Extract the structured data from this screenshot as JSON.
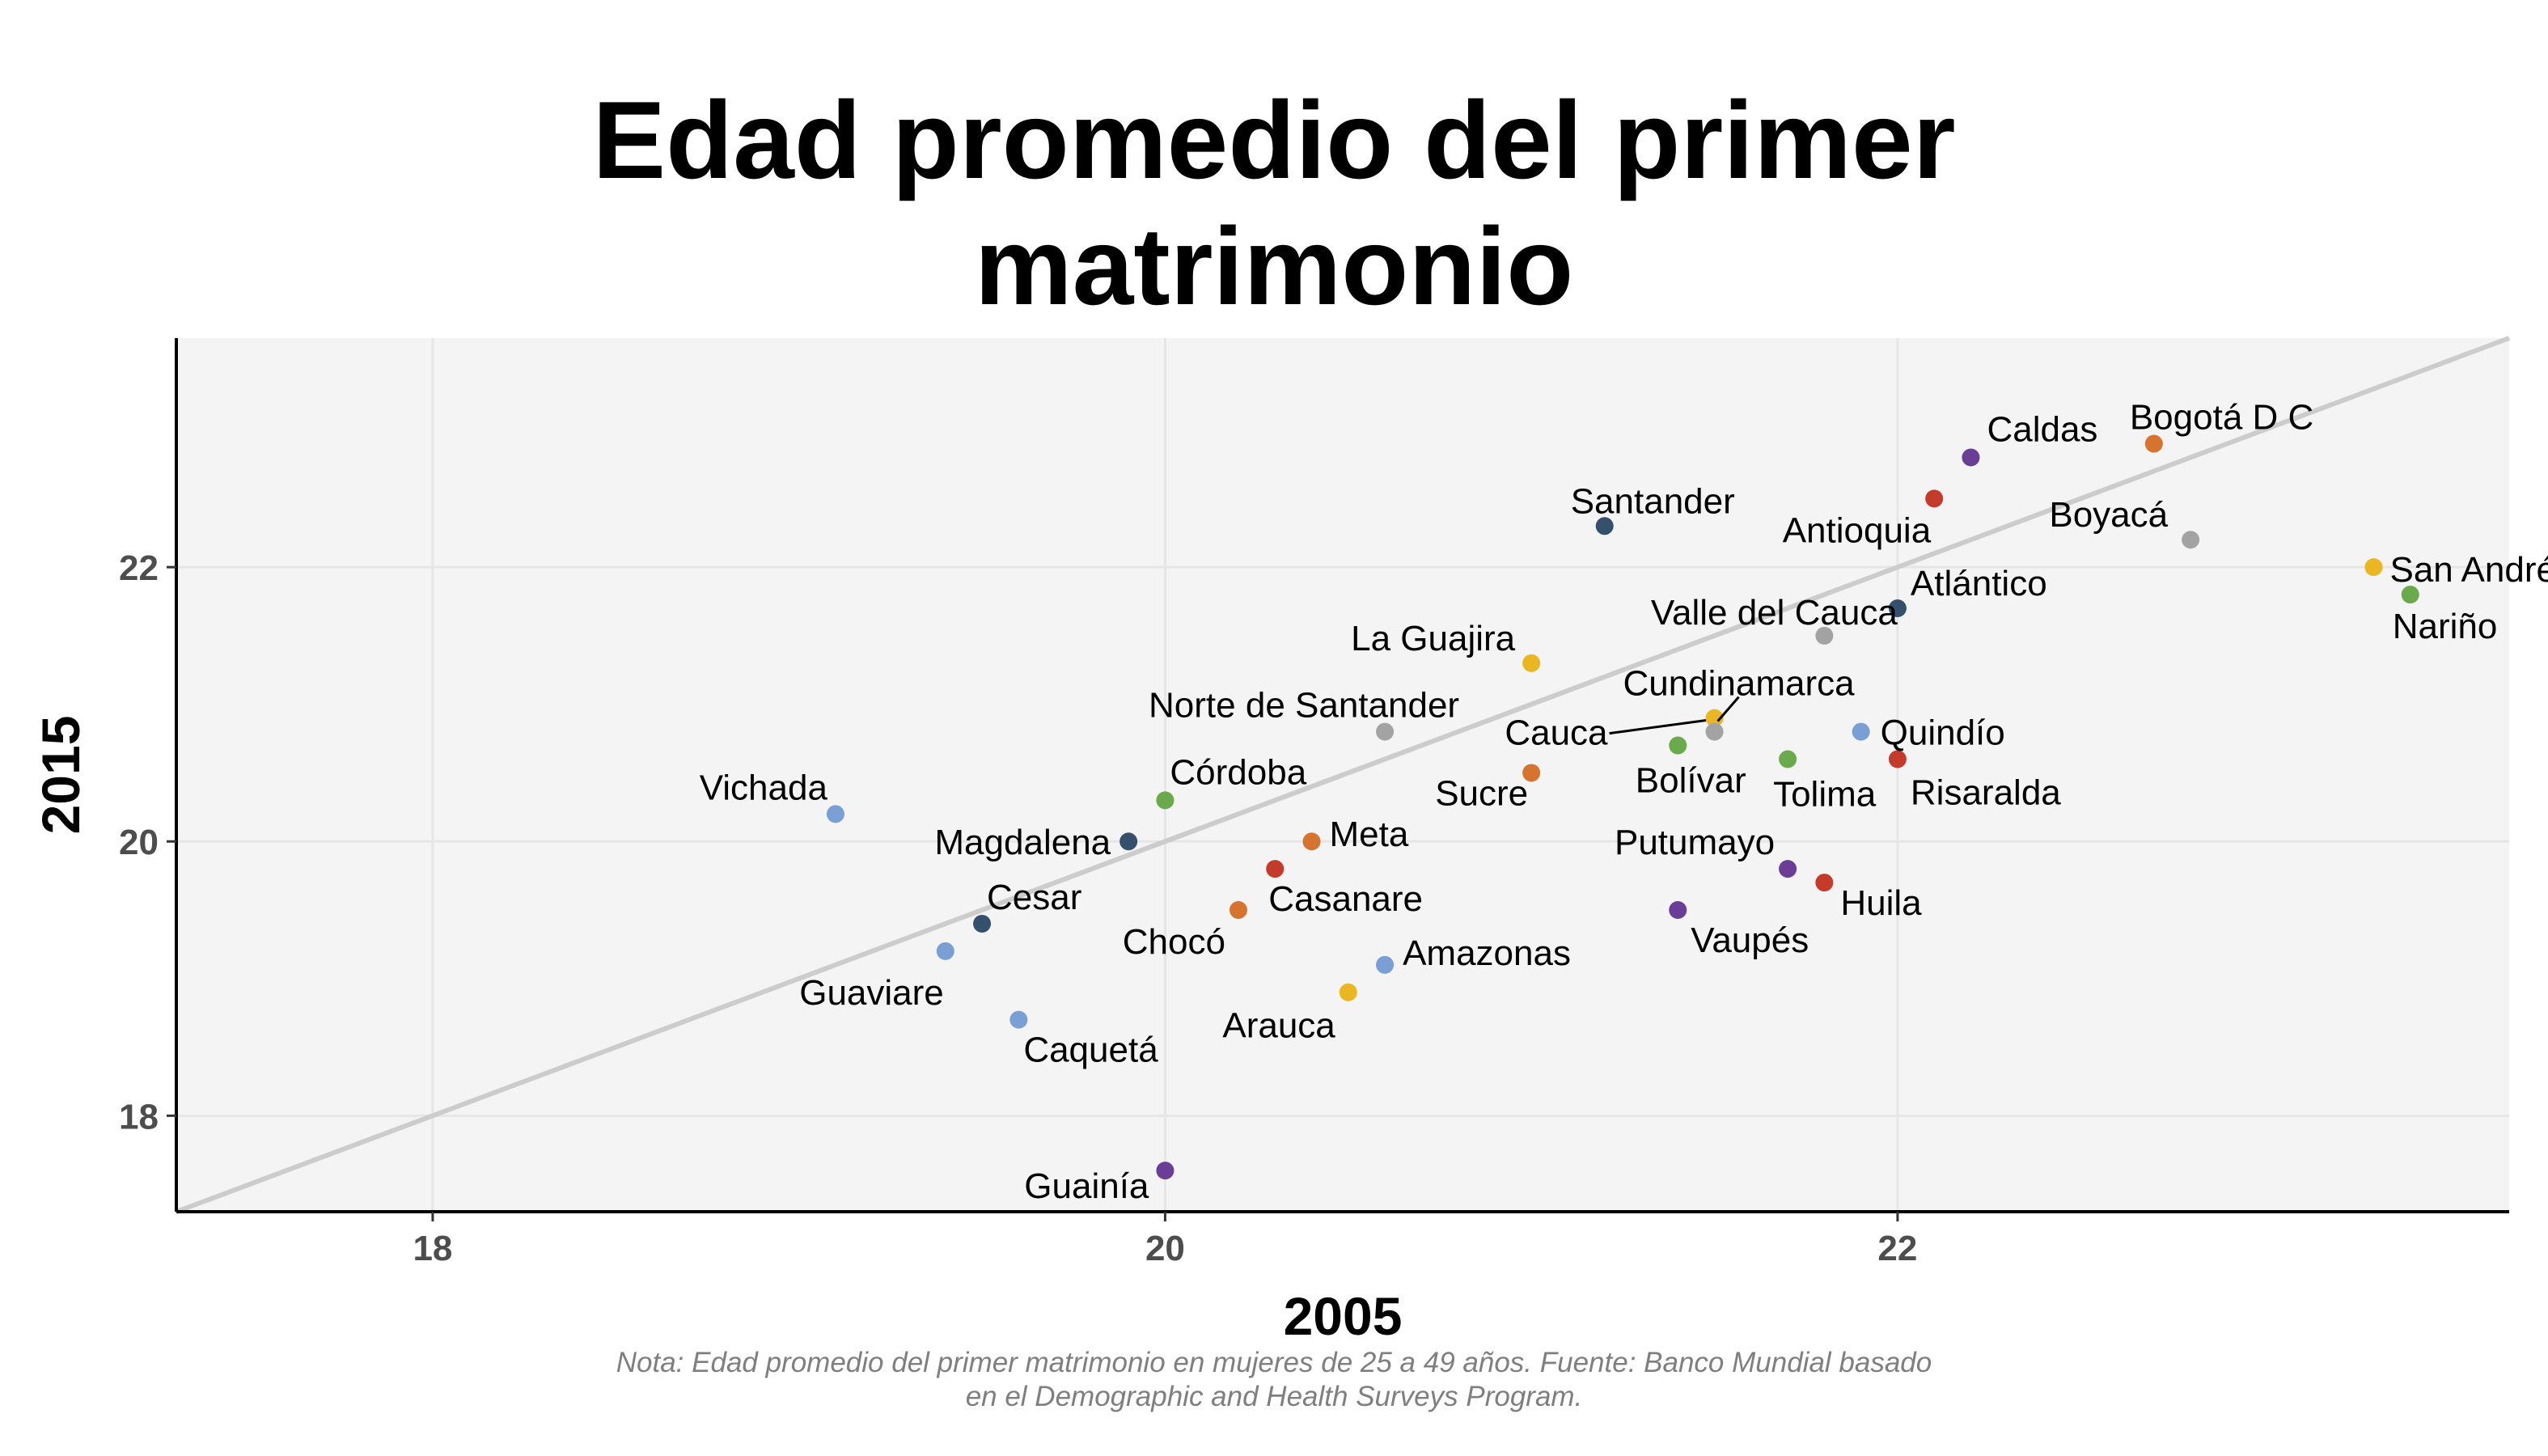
{
  "colors": {
    "panel": "#f4f4f4",
    "grid": "#e6e6e6",
    "reference_line": "#cccccc",
    "axis": "#000000",
    "dark_blue": "#34506d",
    "light_blue": "#7a9fd4",
    "green": "#6aaa4c",
    "orange": "#d5732f",
    "red": "#c43b2b",
    "purple": "#6a3e97",
    "yellow": "#eab722",
    "gray": "#a3a3a3"
  },
  "chart_data": {
    "type": "scatter",
    "title": "Edad promedio del primer\nmatrimonio",
    "xlabel": "2005",
    "ylabel": "2015",
    "xlim": [
      17.3,
      23.67
    ],
    "ylim": [
      17.3,
      23.67
    ],
    "xticks": [
      18,
      20,
      22
    ],
    "yticks": [
      18,
      20,
      22
    ],
    "grid": true,
    "reference_line": "y = x",
    "legend": "none",
    "points": [
      {
        "label": "Caldas",
        "x": 22.2,
        "y": 22.8,
        "color": "purple"
      },
      {
        "label": "Bogotá D C",
        "x": 22.7,
        "y": 22.9,
        "color": "orange"
      },
      {
        "label": "Antioquia",
        "x": 22.1,
        "y": 22.5,
        "color": "red"
      },
      {
        "label": "Santander",
        "x": 21.2,
        "y": 22.3,
        "color": "dark_blue"
      },
      {
        "label": "Boyacá",
        "x": 22.8,
        "y": 22.2,
        "color": "gray"
      },
      {
        "label": "San Andrés",
        "x": 23.3,
        "y": 22.0,
        "color": "yellow"
      },
      {
        "label": "Nariño",
        "x": 23.4,
        "y": 21.8,
        "color": "green"
      },
      {
        "label": "Atlántico",
        "x": 22.0,
        "y": 21.7,
        "color": "dark_blue"
      },
      {
        "label": "Valle del Cauca",
        "x": 21.8,
        "y": 21.5,
        "color": "gray"
      },
      {
        "label": "La Guajira",
        "x": 21.0,
        "y": 21.3,
        "color": "yellow"
      },
      {
        "label": "Cundinamarca",
        "x": 21.5,
        "y": 20.9,
        "color": "yellow"
      },
      {
        "label": "Cauca",
        "x": 21.5,
        "y": 20.8,
        "color": "gray"
      },
      {
        "label": "Norte de Santander",
        "x": 20.6,
        "y": 20.8,
        "color": "gray"
      },
      {
        "label": "Quindío",
        "x": 21.9,
        "y": 20.8,
        "color": "light_blue"
      },
      {
        "label": "Bolívar",
        "x": 21.4,
        "y": 20.7,
        "color": "green"
      },
      {
        "label": "Tolima",
        "x": 21.7,
        "y": 20.6,
        "color": "green"
      },
      {
        "label": "Risaralda",
        "x": 22.0,
        "y": 20.6,
        "color": "red"
      },
      {
        "label": "Sucre",
        "x": 21.0,
        "y": 20.5,
        "color": "orange"
      },
      {
        "label": "Córdoba",
        "x": 20.0,
        "y": 20.3,
        "color": "green"
      },
      {
        "label": "Vichada",
        "x": 19.1,
        "y": 20.2,
        "color": "light_blue"
      },
      {
        "label": "Magdalena",
        "x": 19.9,
        "y": 20.0,
        "color": "dark_blue"
      },
      {
        "label": "Meta",
        "x": 20.4,
        "y": 20.0,
        "color": "orange"
      },
      {
        "label": "Putumayo",
        "x": 21.7,
        "y": 19.8,
        "color": "purple"
      },
      {
        "label": "Casanare",
        "x": 20.3,
        "y": 19.8,
        "color": "red"
      },
      {
        "label": "Huila",
        "x": 21.8,
        "y": 19.7,
        "color": "red"
      },
      {
        "label": "Chocó",
        "x": 20.2,
        "y": 19.5,
        "color": "orange"
      },
      {
        "label": "Vaupés",
        "x": 21.4,
        "y": 19.5,
        "color": "purple"
      },
      {
        "label": "Cesar",
        "x": 19.5,
        "y": 19.4,
        "color": "dark_blue"
      },
      {
        "label": "Guaviare",
        "x": 19.4,
        "y": 19.2,
        "color": "light_blue"
      },
      {
        "label": "Amazonas",
        "x": 20.6,
        "y": 19.1,
        "color": "light_blue"
      },
      {
        "label": "Arauca",
        "x": 20.5,
        "y": 18.9,
        "color": "yellow"
      },
      {
        "label": "Caquetá",
        "x": 19.6,
        "y": 18.7,
        "color": "light_blue"
      },
      {
        "label": "Guainía",
        "x": 20.0,
        "y": 17.6,
        "color": "purple"
      }
    ]
  },
  "note": {
    "line1": "Nota: Edad promedio del primer matrimonio en mujeres de 25 a 49 años. Fuente: Banco Mundial basado",
    "line2": "en el Demographic and Health Surveys Program."
  }
}
